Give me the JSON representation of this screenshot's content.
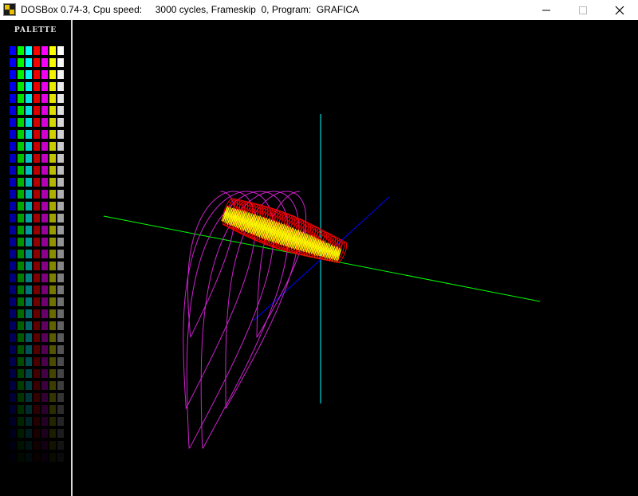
{
  "window": {
    "title": "DOSBox 0.74-3, Cpu speed:     3000 cycles, Frameskip  0, Program:  GRAFICA",
    "icon": "dosbox-icon",
    "controls": [
      "minimize-icon",
      "maximize-icon",
      "close-icon"
    ]
  },
  "palette": {
    "title": "PALETTE",
    "base_colors": [
      "#0000ff",
      "#00ff00",
      "#00ffff",
      "#ff0000",
      "#ff00ff",
      "#ffff00",
      "#ffffff"
    ],
    "rows": 35
  },
  "scene": {
    "background": "#000000",
    "axis_colors": {
      "x": "#00ff00",
      "y": "#00ffff",
      "z": "#0000ff"
    },
    "curve_colors": {
      "outer_trace": "#cc22cc",
      "helix_front": "#ffff00",
      "helix_back": "#ff0000"
    }
  }
}
